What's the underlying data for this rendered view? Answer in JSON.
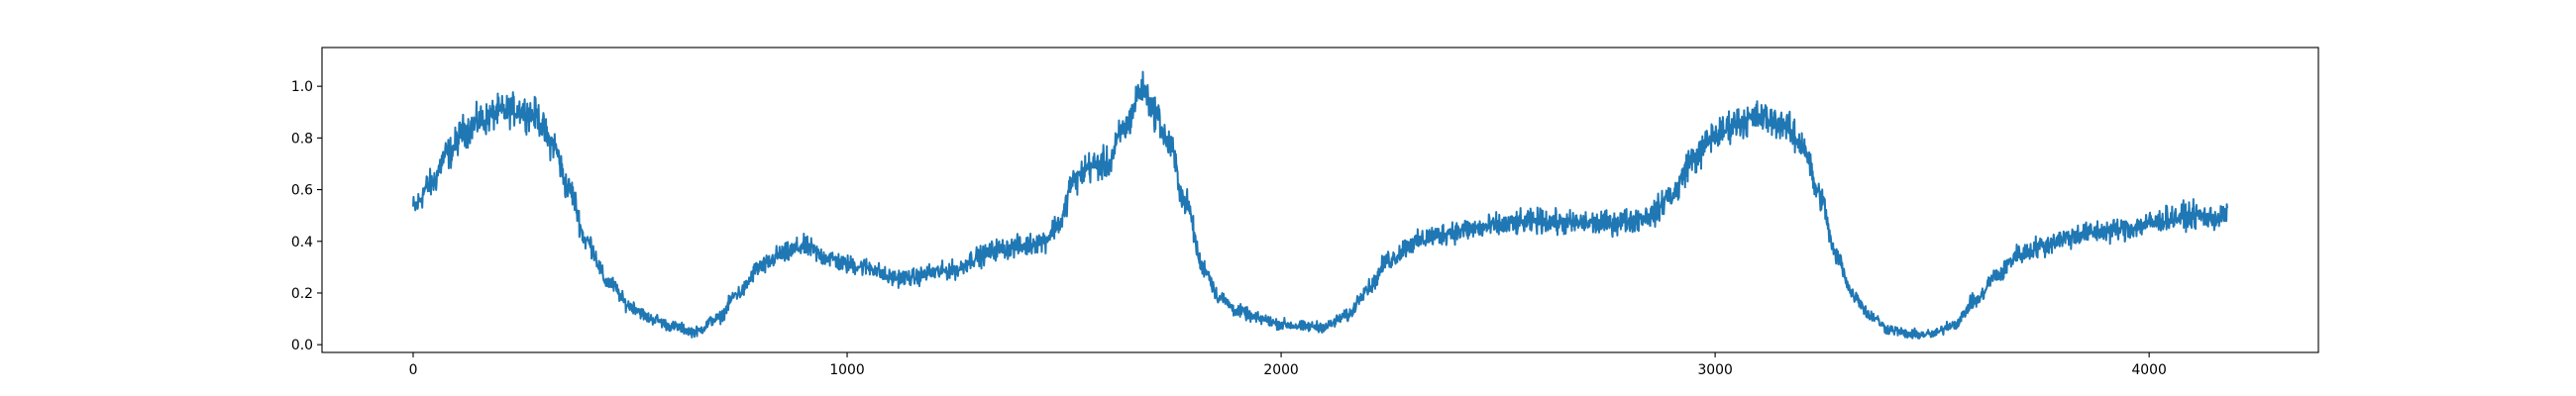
{
  "chart_data": {
    "type": "line",
    "title": "",
    "xlabel": "",
    "ylabel": "",
    "xlim": [
      -210,
      4390
    ],
    "ylim": [
      -0.03,
      1.15
    ],
    "xticks": [
      0,
      1000,
      2000,
      3000,
      4000
    ],
    "xtick_labels": [
      "0",
      "1000",
      "2000",
      "3000",
      "4000"
    ],
    "yticks": [
      0.0,
      0.2,
      0.4,
      0.6,
      0.8,
      1.0
    ],
    "ytick_labels": [
      "0.0",
      "0.2",
      "0.4",
      "0.6",
      "0.8",
      "1.0"
    ],
    "grid": false,
    "legend": "none",
    "line_color": "#1f77b4",
    "noise_amplitude": 0.045,
    "n_points": 4180,
    "series": [
      {
        "x": [
          0,
          40,
          80,
          120,
          160,
          200,
          240,
          280,
          320,
          360,
          400,
          450,
          500,
          550,
          600,
          650,
          700,
          750,
          800,
          850,
          900,
          950,
          1000,
          1050,
          1100,
          1150,
          1200,
          1250,
          1300,
          1350,
          1400,
          1450,
          1490,
          1520,
          1560,
          1600,
          1640,
          1680,
          1710,
          1740,
          1780,
          1820,
          1860,
          1900,
          1950,
          2000,
          2050,
          2100,
          2150,
          2200,
          2250,
          2300,
          2350,
          2400,
          2450,
          2500,
          2550,
          2600,
          2650,
          2700,
          2750,
          2800,
          2850,
          2900,
          2950,
          3000,
          3050,
          3100,
          3150,
          3200,
          3240,
          3280,
          3320,
          3360,
          3400,
          3450,
          3500,
          3550,
          3600,
          3650,
          3700,
          3750,
          3800,
          3850,
          3900,
          3950,
          4000,
          4050,
          4100,
          4150,
          4180
        ],
        "y": [
          0.53,
          0.62,
          0.74,
          0.83,
          0.87,
          0.9,
          0.91,
          0.89,
          0.78,
          0.6,
          0.4,
          0.24,
          0.15,
          0.1,
          0.07,
          0.05,
          0.1,
          0.2,
          0.3,
          0.35,
          0.38,
          0.34,
          0.31,
          0.3,
          0.26,
          0.26,
          0.28,
          0.29,
          0.34,
          0.37,
          0.38,
          0.4,
          0.47,
          0.63,
          0.69,
          0.7,
          0.84,
          0.99,
          0.9,
          0.78,
          0.55,
          0.3,
          0.18,
          0.13,
          0.1,
          0.08,
          0.07,
          0.07,
          0.11,
          0.22,
          0.33,
          0.39,
          0.42,
          0.44,
          0.45,
          0.46,
          0.47,
          0.48,
          0.47,
          0.47,
          0.47,
          0.48,
          0.5,
          0.58,
          0.72,
          0.81,
          0.86,
          0.88,
          0.86,
          0.78,
          0.58,
          0.34,
          0.19,
          0.11,
          0.06,
          0.04,
          0.04,
          0.08,
          0.17,
          0.27,
          0.35,
          0.38,
          0.41,
          0.43,
          0.44,
          0.45,
          0.47,
          0.49,
          0.5,
          0.49,
          0.5
        ]
      }
    ]
  }
}
